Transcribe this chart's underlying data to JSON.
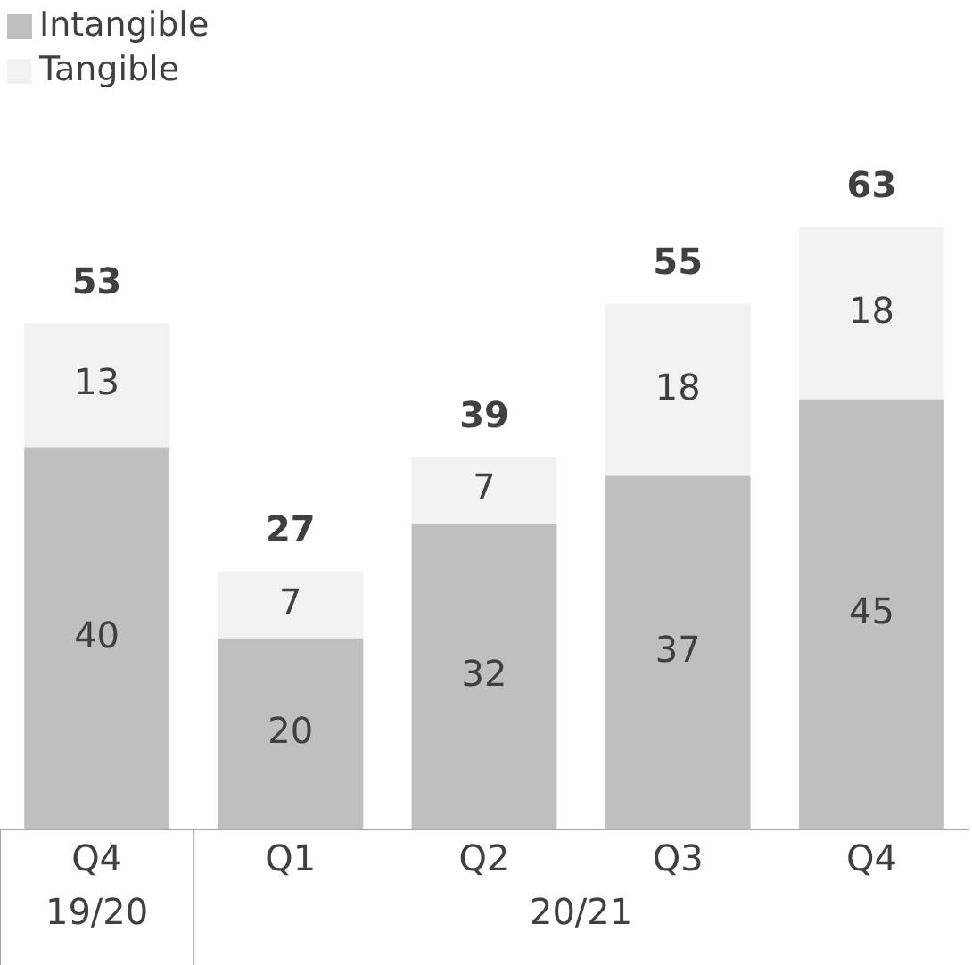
{
  "chart_data": {
    "type": "bar",
    "stacked": true,
    "data_labels": true,
    "legend": "top left",
    "grid": false,
    "categories": [
      "Q4",
      "Q1",
      "Q2",
      "Q3",
      "Q4"
    ],
    "series": [
      {
        "name": "Intangible",
        "color": "#bfbfbf",
        "values": [
          40,
          20,
          32,
          37,
          45
        ]
      },
      {
        "name": "Tangible",
        "color": "#f2f2f2",
        "values": [
          13,
          7,
          7,
          18,
          18
        ]
      }
    ],
    "totals": [
      "53",
      "27",
      "39",
      "55",
      "63"
    ],
    "tick_labels": "x",
    "annotations": [
      "19/20",
      "20/21"
    ]
  }
}
